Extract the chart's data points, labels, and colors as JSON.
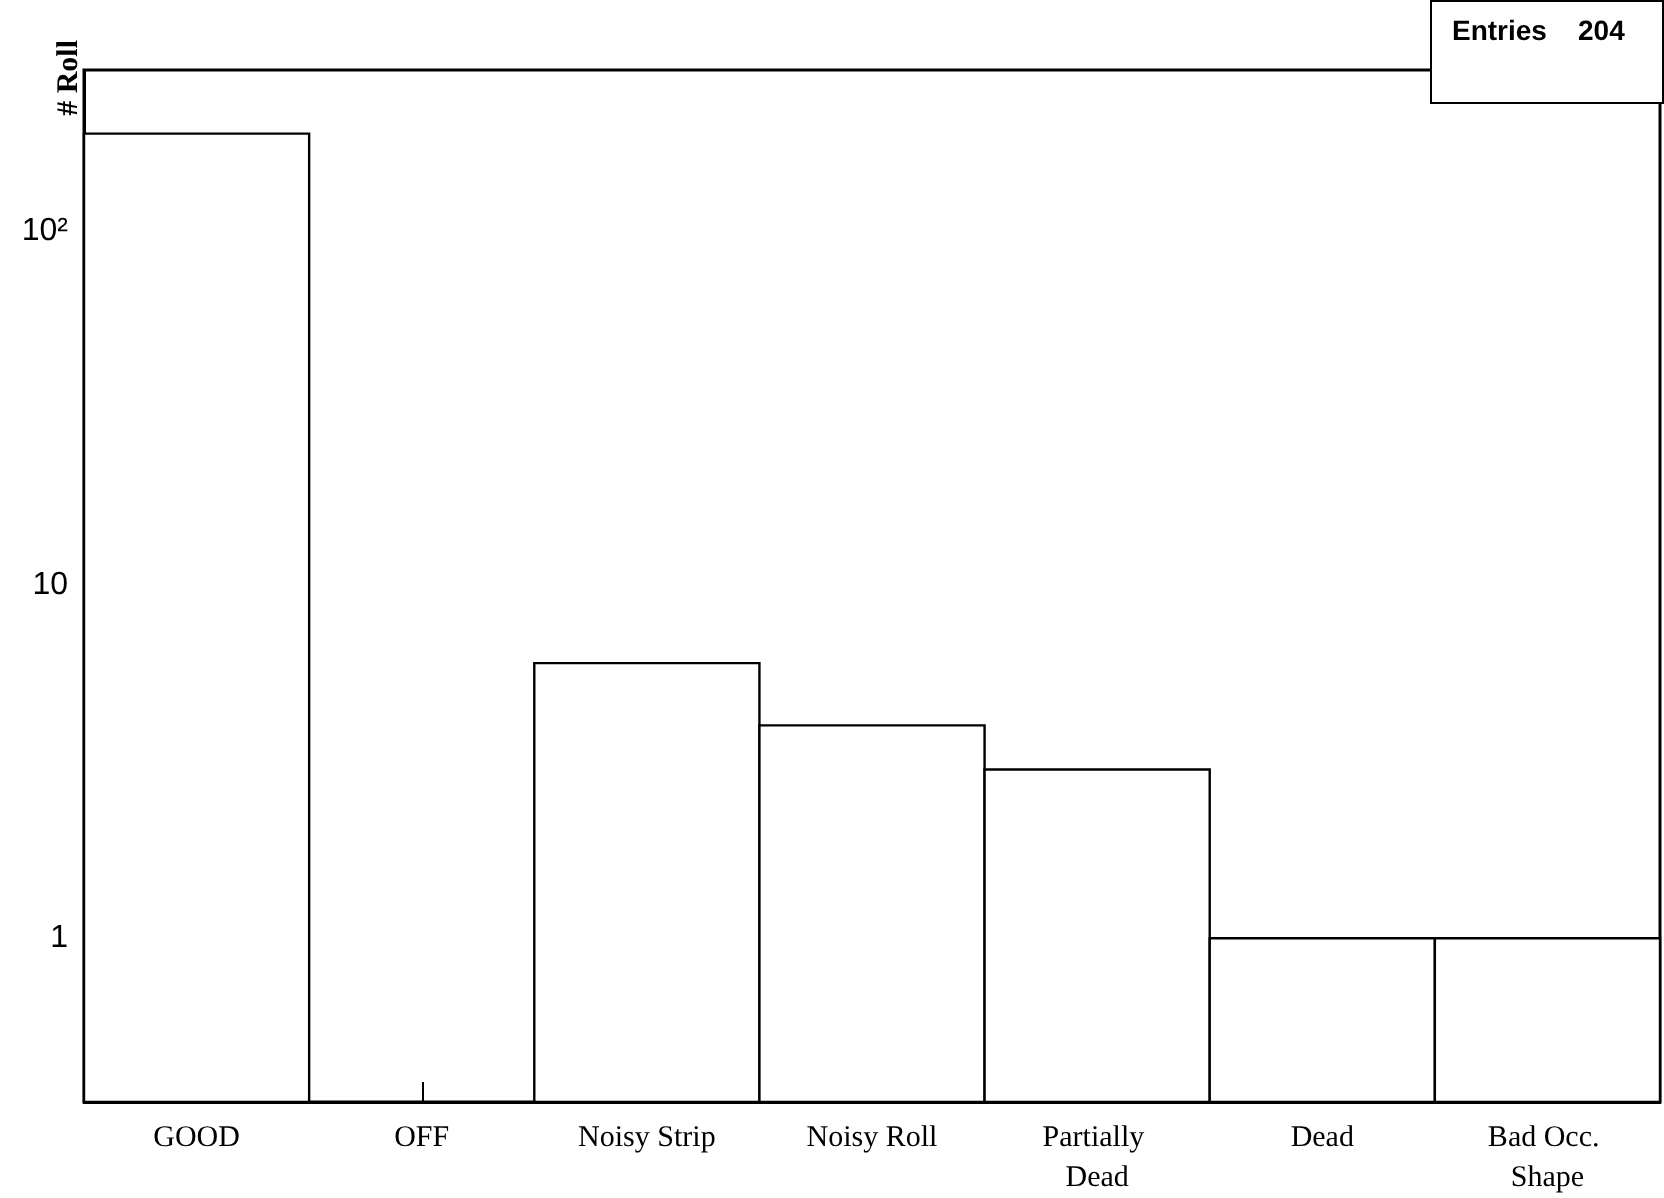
{
  "chart_data": {
    "type": "bar",
    "ylabel": "# Roll",
    "categories": [
      "GOOD",
      "OFF",
      "Noisy Strip",
      "Noisy Roll",
      "Partially Dead",
      "Dead",
      "Bad Occ. Shape"
    ],
    "values": [
      189,
      null,
      6,
      4,
      3,
      1,
      1
    ],
    "color": "#ffffff",
    "log": "y",
    "ylim": [
      0.344,
      286
    ],
    "yticks": [
      1,
      10,
      {
        "value": 100,
        "label": "10²"
      }
    ],
    "grid": false,
    "annotations": [
      "Entries    204"
    ]
  }
}
